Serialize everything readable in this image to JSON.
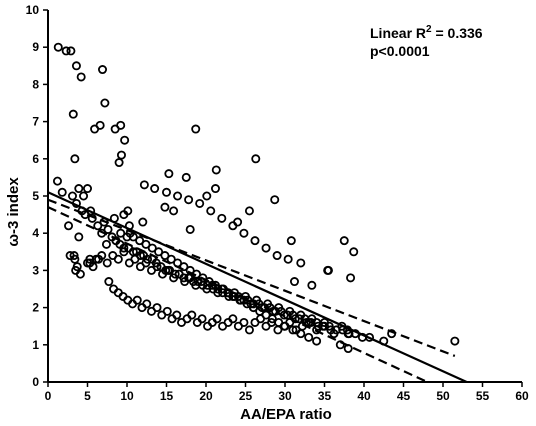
{
  "chart_data": {
    "type": "scatter",
    "title": "",
    "xlabel": "AA/EPA ratio",
    "ylabel": "ω-3 index",
    "xlim": [
      0,
      60
    ],
    "ylim": [
      0,
      10
    ],
    "xticks": [
      "0",
      "5",
      "10",
      "15",
      "20",
      "25",
      "30",
      "35",
      "40",
      "45",
      "50",
      "55",
      "60"
    ],
    "yticks": [
      "0",
      "1",
      "2",
      "3",
      "4",
      "5",
      "6",
      "7",
      "8",
      "9",
      "10"
    ],
    "grid": false,
    "annotation": {
      "line1": "Linear R",
      "superscript": "2",
      "line1_suffix": " = 0.336",
      "line2": "p<0.0001"
    },
    "regression": {
      "fit": [
        [
          0,
          5.1
        ],
        [
          53,
          0
        ]
      ],
      "ci_upper": [
        [
          0,
          4.9
        ],
        [
          51.5,
          0.7
        ]
      ],
      "ci_lower": [
        [
          0,
          4.7
        ],
        [
          48,
          0
        ]
      ]
    },
    "x": [
      1.3,
      2.3,
      2.9,
      3.2,
      3.6,
      4.2,
      1.2,
      1.8,
      2.6,
      3.1,
      3.4,
      3.9,
      4.5,
      5.0,
      5.4,
      5.9,
      3.5,
      3.9,
      3.4,
      3.7,
      4.1,
      5.0,
      5.3,
      5.7,
      6.4,
      6.9,
      7.2,
      6.6,
      8.5,
      9.2,
      9.7,
      9.3,
      9.0,
      10.1,
      9.6,
      10.3,
      12.0,
      10.4,
      2.8,
      3.6,
      4.3,
      4.7,
      5.6,
      6.3,
      6.8,
      7.1,
      7.6,
      8.1,
      8.6,
      9.1,
      9.6,
      10.2,
      10.8,
      11.2,
      11.7,
      12.1,
      12.6,
      13.2,
      13.7,
      14.3,
      14.9,
      15.4,
      16.1,
      16.6,
      17.2,
      17.8,
      18.4,
      19.0,
      19.6,
      20.2,
      20.9,
      21.5,
      22.1,
      22.8,
      23.4,
      24.1,
      24.8,
      25.3,
      26.0,
      26.7,
      27.4,
      28.1,
      28.8,
      29.5,
      30.3,
      31.0,
      31.8,
      32.5,
      33.3,
      34.0,
      34.8,
      35.6,
      36.5,
      37.3,
      38.1,
      38.9,
      39.8,
      40.7,
      42.5,
      7.7,
      8.3,
      8.9,
      9.5,
      10.1,
      10.7,
      11.3,
      11.9,
      12.5,
      13.1,
      13.8,
      14.4,
      15.1,
      15.7,
      16.3,
      16.9,
      17.6,
      18.2,
      18.9,
      19.5,
      20.2,
      20.8,
      21.4,
      22.1,
      22.8,
      23.4,
      24.1,
      24.8,
      25.5,
      26.2,
      26.9,
      27.6,
      28.3,
      29.1,
      29.9,
      30.6,
      31.4,
      32.2,
      33.0,
      34.0,
      35.0,
      36.2,
      37.9,
      5.3,
      6.1,
      6.8,
      7.5,
      8.2,
      8.9,
      9.6,
      10.3,
      11.0,
      11.7,
      12.4,
      13.1,
      13.8,
      14.5,
      15.2,
      15.9,
      16.6,
      17.3,
      18.0,
      18.7,
      19.4,
      20.1,
      20.8,
      21.5,
      22.2,
      22.9,
      23.6,
      24.3,
      25.0,
      25.7,
      26.4,
      27.1,
      27.8,
      28.5,
      29.2,
      29.9,
      30.6,
      31.3,
      32.0,
      32.7,
      33.4,
      34.2,
      35.0,
      35.8,
      37.2,
      38.0,
      8.4,
      9.2,
      10.0,
      10.8,
      11.6,
      12.4,
      13.2,
      14.0,
      14.8,
      15.6,
      16.4,
      17.2,
      18.0,
      18.8,
      19.6,
      20.4,
      21.2,
      22.0,
      22.8,
      23.6,
      24.4,
      25.2,
      26.0,
      26.8,
      27.6,
      28.4,
      29.2,
      30.0,
      31.0,
      32.0,
      33.0,
      34.0,
      37.0,
      38.0,
      13.5,
      15.0,
      16.4,
      17.8,
      19.2,
      20.6,
      22.0,
      23.4,
      24.8,
      26.2,
      27.6,
      29.0,
      30.4,
      32.0,
      35.5,
      38.3,
      18.7,
      21.2,
      12.2,
      15.3,
      14.8,
      15.9,
      17.5,
      18.0,
      20.1,
      21.3,
      24.0,
      25.5,
      26.3,
      28.7,
      30.8,
      33.4,
      35.4,
      37.5,
      38.7,
      43.5,
      51.5,
      31.2,
      7.4,
      3.3
    ],
    "y": [
      9.0,
      8.9,
      8.9,
      7.2,
      8.5,
      8.2,
      5.4,
      5.1,
      4.2,
      5.0,
      6.0,
      5.2,
      5.0,
      5.2,
      4.6,
      6.8,
      3.0,
      3.9,
      3.3,
      3.1,
      2.9,
      3.2,
      3.3,
      3.1,
      3.3,
      8.4,
      7.5,
      6.9,
      6.8,
      6.9,
      6.5,
      6.1,
      5.9,
      4.6,
      4.5,
      4.2,
      4.3,
      4.0,
      3.4,
      4.8,
      4.6,
      4.5,
      4.4,
      4.2,
      4.0,
      4.3,
      4.1,
      3.9,
      3.8,
      3.7,
      3.6,
      3.6,
      3.5,
      3.5,
      3.4,
      3.4,
      3.3,
      3.3,
      3.2,
      3.1,
      3.0,
      3.0,
      2.9,
      2.9,
      2.8,
      2.8,
      2.7,
      2.7,
      2.6,
      2.6,
      2.5,
      2.5,
      2.4,
      2.4,
      2.3,
      2.3,
      2.2,
      2.2,
      2.1,
      2.1,
      2.0,
      2.0,
      1.9,
      1.9,
      1.8,
      1.8,
      1.7,
      1.7,
      1.6,
      1.6,
      1.5,
      1.5,
      1.4,
      1.4,
      1.3,
      1.3,
      1.2,
      1.2,
      1.1,
      2.7,
      2.5,
      2.4,
      2.3,
      2.2,
      2.1,
      2.2,
      2.0,
      2.1,
      1.9,
      2.0,
      1.8,
      1.9,
      1.7,
      1.8,
      1.6,
      1.7,
      1.8,
      1.6,
      1.7,
      1.5,
      1.6,
      1.7,
      1.5,
      1.6,
      1.7,
      1.5,
      1.6,
      1.4,
      1.6,
      1.7,
      1.5,
      1.6,
      1.4,
      1.5,
      1.6,
      1.4,
      1.5,
      1.6,
      1.4,
      1.5,
      1.3,
      1.4,
      3.2,
      3.3,
      3.4,
      3.2,
      3.4,
      3.3,
      3.5,
      3.2,
      3.3,
      3.1,
      3.2,
      3.0,
      3.1,
      2.9,
      3.0,
      2.8,
      2.9,
      2.7,
      2.8,
      2.6,
      2.7,
      2.5,
      2.6,
      2.4,
      2.5,
      2.3,
      2.4,
      2.2,
      2.3,
      2.1,
      2.2,
      2.0,
      2.1,
      1.9,
      2.0,
      1.8,
      1.9,
      1.7,
      1.8,
      1.6,
      1.7,
      1.5,
      1.6,
      1.4,
      1.5,
      1.3,
      4.4,
      4.0,
      3.9,
      3.9,
      3.8,
      3.7,
      3.6,
      3.5,
      3.4,
      3.3,
      3.2,
      3.1,
      3.0,
      2.9,
      2.8,
      2.7,
      2.6,
      2.5,
      2.4,
      2.3,
      2.2,
      2.1,
      2.0,
      1.9,
      1.8,
      1.7,
      1.6,
      1.5,
      1.4,
      1.3,
      1.2,
      1.1,
      1.0,
      0.9,
      5.2,
      5.1,
      5.0,
      4.9,
      4.8,
      4.6,
      4.4,
      4.2,
      4.0,
      3.8,
      3.6,
      3.4,
      3.3,
      3.2,
      3.0,
      2.8,
      6.8,
      5.2,
      5.3,
      5.6,
      4.7,
      4.6,
      5.5,
      4.1,
      5.0,
      5.7,
      4.3,
      4.6,
      6.0,
      4.9,
      3.8,
      2.6,
      3.0,
      3.8,
      3.5,
      1.3,
      1.1,
      2.7,
      3.7,
      3.4
    ]
  }
}
